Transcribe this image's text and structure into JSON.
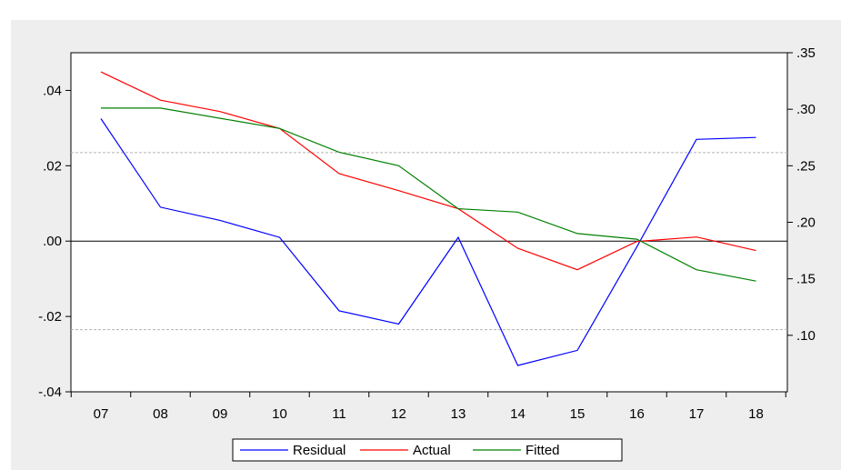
{
  "chart_data": {
    "type": "line",
    "categories": [
      "07",
      "08",
      "09",
      "10",
      "11",
      "12",
      "13",
      "14",
      "15",
      "16",
      "17",
      "18"
    ],
    "left_axis": {
      "ylim": [
        -0.04,
        0.05
      ],
      "tick_values": [
        -0.04,
        -0.02,
        0.0,
        0.02,
        0.04
      ],
      "tick_labels": [
        "-.04",
        "-.02",
        ".00",
        ".02",
        ".04"
      ],
      "zero_line": 0.0,
      "reference_lines": [
        0.0235,
        -0.0235
      ]
    },
    "right_axis": {
      "ylim": [
        0.05,
        0.35
      ],
      "tick_values": [
        0.1,
        0.15,
        0.2,
        0.25,
        0.3,
        0.35
      ],
      "tick_labels": [
        ".10",
        ".15",
        ".20",
        ".25",
        ".30",
        ".35"
      ]
    },
    "series": [
      {
        "name": "Residual",
        "axis": "left",
        "color": "#0000ff",
        "values": [
          0.0325,
          0.009,
          0.0055,
          0.001,
          -0.0185,
          -0.022,
          0.001,
          -0.033,
          -0.029,
          -0.0015,
          0.027,
          0.0275
        ]
      },
      {
        "name": "Actual",
        "axis": "right",
        "color": "#ff0000",
        "values": [
          0.333,
          0.308,
          0.298,
          0.283,
          0.243,
          0.228,
          0.212,
          0.177,
          0.158,
          0.183,
          0.187,
          0.175
        ]
      },
      {
        "name": "Fitted",
        "axis": "right",
        "color": "#008000",
        "values": [
          0.301,
          0.301,
          0.292,
          0.283,
          0.262,
          0.25,
          0.212,
          0.209,
          0.19,
          0.185,
          0.158,
          0.148
        ]
      }
    ],
    "legend": {
      "placement": "bottom-center",
      "entries": [
        "Residual",
        "Actual",
        "Fitted"
      ]
    },
    "colors": {
      "frame_background": "#eeeeee",
      "plot_background": "#ffffff",
      "reference_line": "#b4b4b4"
    }
  }
}
